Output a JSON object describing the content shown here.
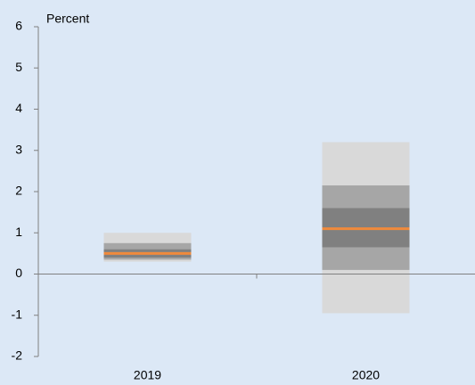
{
  "chart_data": {
    "type": "fan",
    "ylabel": "Percent",
    "categories": [
      "2019",
      "2020"
    ],
    "bands": [
      {
        "color": "#d9d9d9",
        "low": [
          0.3,
          -0.95
        ],
        "high": [
          1.0,
          3.2
        ]
      },
      {
        "color": "#a6a6a6",
        "low": [
          0.35,
          0.1
        ],
        "high": [
          0.75,
          2.15
        ]
      },
      {
        "color": "#808080",
        "low": [
          0.4,
          0.65
        ],
        "high": [
          0.6,
          1.6
        ]
      }
    ],
    "median": {
      "color": "#f08a3c",
      "values": [
        0.5,
        1.1
      ]
    },
    "ylim": [
      -2,
      6
    ],
    "yticks": [
      -2,
      -1,
      0,
      1,
      2,
      3,
      4,
      5,
      6
    ]
  }
}
